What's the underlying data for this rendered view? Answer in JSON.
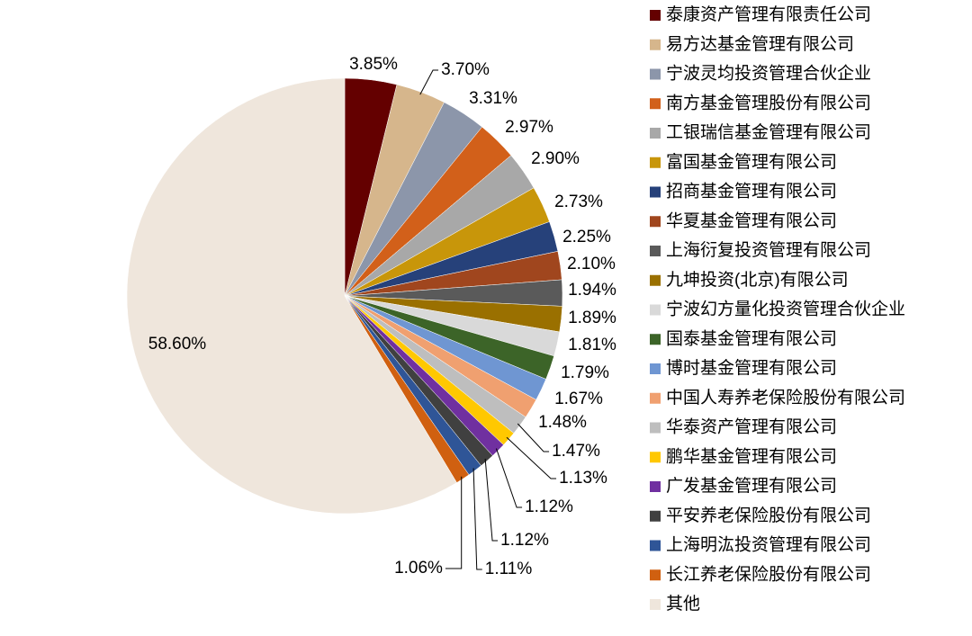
{
  "chart_data": {
    "type": "pie",
    "categories": [
      "泰康资产管理有限责任公司",
      "易方达基金管理有限公司",
      "宁波灵均投资管理合伙企业",
      "南方基金管理股份有限公司",
      "工银瑞信基金管理有限公司",
      "富国基金管理有限公司",
      "招商基金管理有限公司",
      "华夏基金管理有限公司",
      "上海衍复投资管理有限公司",
      "九坤投资(北京)有限公司",
      "宁波幻方量化投资管理合伙企业",
      "国泰基金管理有限公司",
      "博时基金管理有限公司",
      "中国人寿养老保险股份有限公司",
      "华泰资产管理有限公司",
      "鹏华基金管理有限公司",
      "广发基金管理有限公司",
      "平安养老保险股份有限公司",
      "上海明汯投资管理有限公司",
      "长江养老保险股份有限公司",
      "其他"
    ],
    "values": [
      3.85,
      3.7,
      3.31,
      2.97,
      2.9,
      2.73,
      2.25,
      2.1,
      1.94,
      1.89,
      1.81,
      1.79,
      1.67,
      1.48,
      1.47,
      1.13,
      1.12,
      1.12,
      1.11,
      1.06,
      58.6
    ],
    "value_labels": [
      "3.85%",
      "3.70%",
      "3.31%",
      "2.97%",
      "2.90%",
      "2.73%",
      "2.25%",
      "2.10%",
      "1.94%",
      "1.89%",
      "1.81%",
      "1.79%",
      "1.67%",
      "1.48%",
      "1.47%",
      "1.13%",
      "1.12%",
      "1.12%",
      "1.11%",
      "1.06%",
      "58.60%"
    ],
    "colors": [
      "#640000",
      "#d6b68c",
      "#8c96aa",
      "#d2601a",
      "#a8a8a8",
      "#c8960a",
      "#26417a",
      "#a0461e",
      "#5a5a5a",
      "#9a7000",
      "#d9d9d9",
      "#3c6428",
      "#6f96d2",
      "#f0a070",
      "#bebebe",
      "#ffc800",
      "#7030a0",
      "#404040",
      "#2f5597",
      "#d06010",
      "#efe6dc"
    ]
  }
}
